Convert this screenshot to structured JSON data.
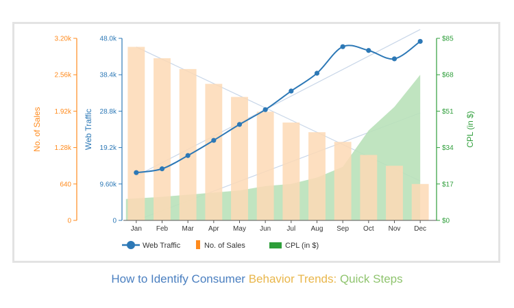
{
  "caption": {
    "part1": "How to Identify Consumer",
    "part2": "Behavior Trends:",
    "part3": "Quick Steps",
    "colors": {
      "part1": "#4a7fc0",
      "part2": "#e9b64a",
      "part3": "#8fc46e"
    }
  },
  "colors": {
    "sales": "#ff8a1c",
    "traffic": "#2c78b6",
    "cpl": "#2e9e3a",
    "bar_fill": "#fdd9b5",
    "cpl_fill": "#b9e1b9",
    "trend": "#c8d6e8"
  },
  "chart_data": {
    "type": "combo",
    "categories": [
      "Jan",
      "Feb",
      "Mar",
      "Apr",
      "May",
      "Jun",
      "Jul",
      "Aug",
      "Sep",
      "Oct",
      "Nov",
      "Dec"
    ],
    "series": [
      {
        "name": "No. of Sales",
        "type": "bar",
        "axis": "left-outer",
        "values": [
          3050,
          2850,
          2660,
          2400,
          2170,
          1910,
          1720,
          1550,
          1380,
          1150,
          960,
          640
        ]
      },
      {
        "name": "Web Traffic",
        "type": "line",
        "axis": "left-inner",
        "values": [
          12600,
          13600,
          17100,
          21100,
          25300,
          29200,
          34100,
          38800,
          45800,
          44800,
          42600,
          47200
        ]
      },
      {
        "name": "CPL (in $)",
        "type": "area",
        "axis": "right",
        "values": [
          10,
          11,
          12,
          13,
          14,
          16,
          17,
          20,
          25,
          42,
          53,
          68
        ]
      }
    ],
    "axes": {
      "sales": {
        "label": "No. of Sales",
        "min": 0,
        "max": 3200,
        "ticks": [
          "0",
          "640",
          "1.28k",
          "1.92k",
          "2.56k",
          "3.20k"
        ]
      },
      "traffic": {
        "label": "Web Traffic",
        "min": 0,
        "max": 48000,
        "ticks": [
          "0",
          "9.60k",
          "19.2k",
          "28.8k",
          "38.4k",
          "48.0k"
        ]
      },
      "cpl": {
        "label": "CPL (in $)",
        "min": 0,
        "max": 85,
        "ticks": [
          "$0",
          "$17",
          "$34",
          "$51",
          "$68",
          "$85"
        ]
      }
    },
    "legend": {
      "position": "bottom-left",
      "items": [
        "Web Traffic",
        "No. of Sales",
        "CPL (in $)"
      ]
    }
  }
}
